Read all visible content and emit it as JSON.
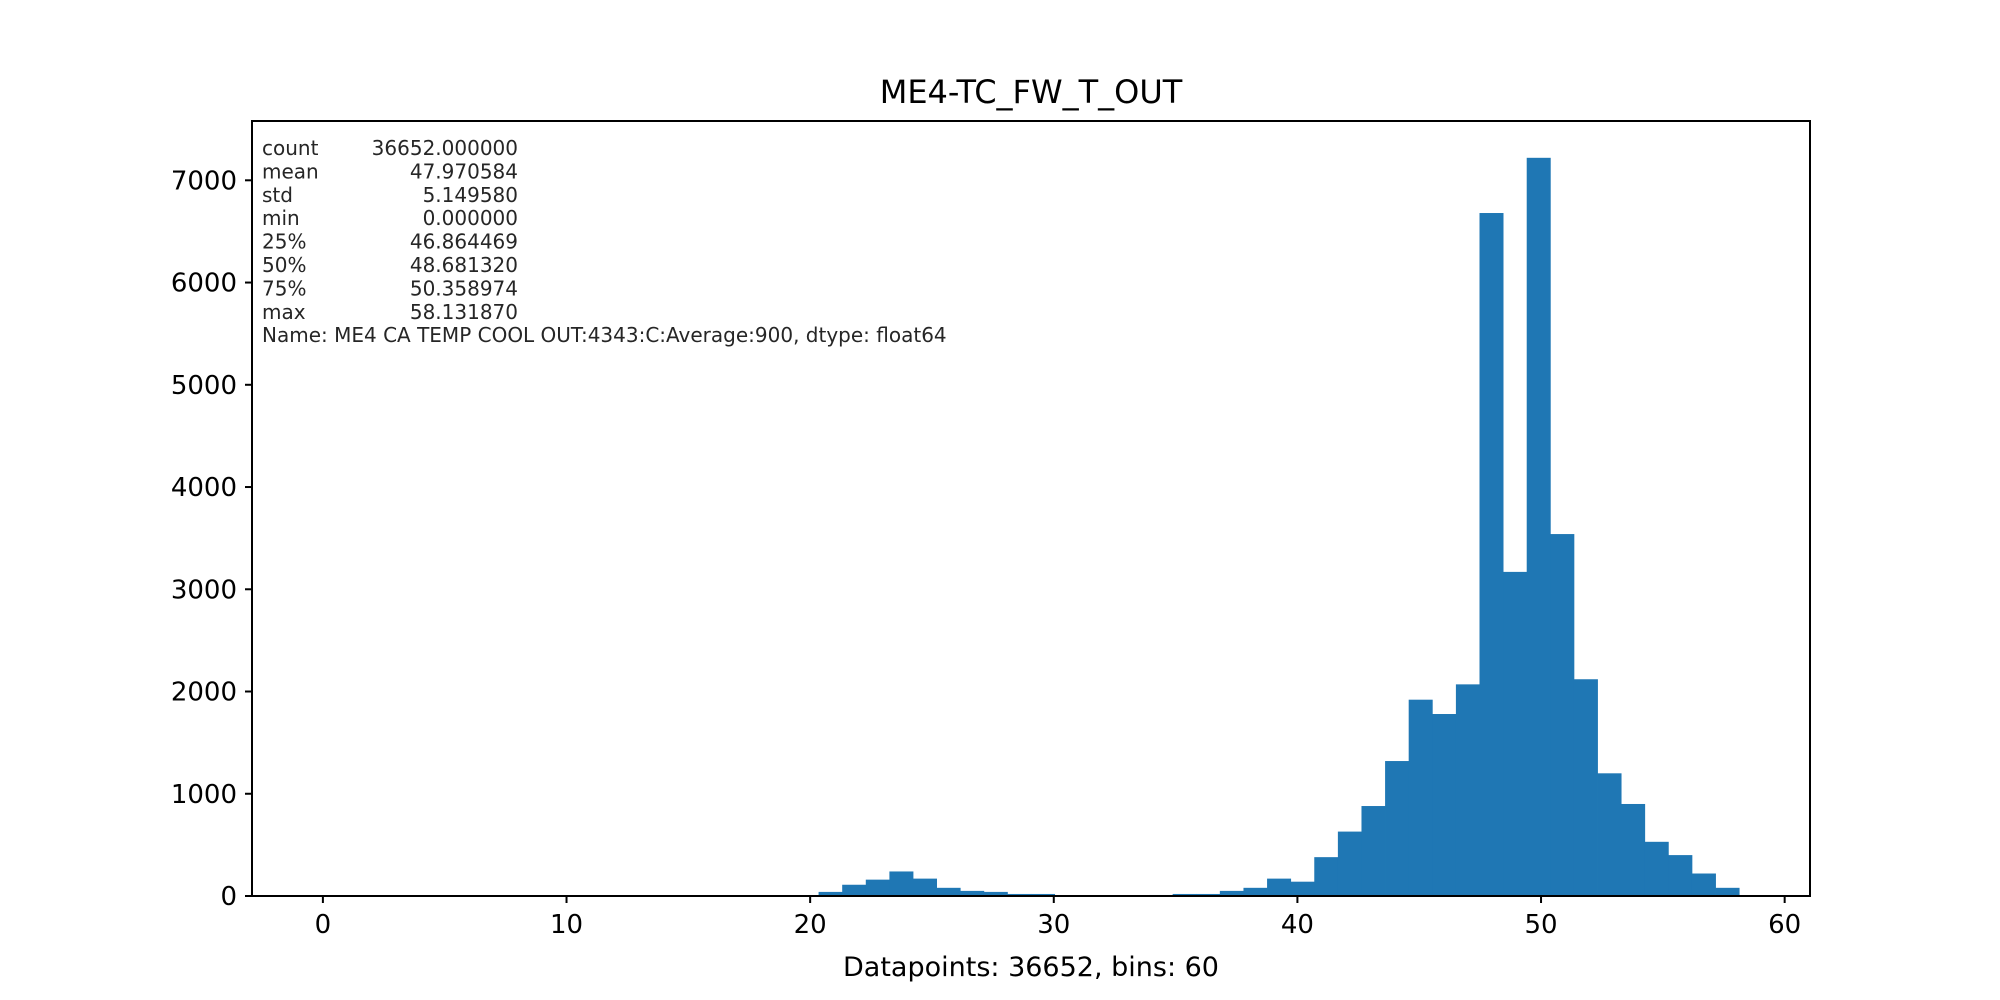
{
  "chart_data": {
    "type": "bar",
    "title": "ME4-TC_FW_T_OUT",
    "xlabel": "Datapoints: 36652, bins: 60",
    "ylabel": "",
    "xlim": [
      -2.91,
      61.04
    ],
    "ylim": [
      0,
      7580
    ],
    "x_ticks": [
      0,
      10,
      20,
      30,
      40,
      50,
      60
    ],
    "y_ticks": [
      0,
      1000,
      2000,
      3000,
      4000,
      5000,
      6000,
      7000
    ],
    "grid": false,
    "legend": "none",
    "bar_color": "#1f77b4",
    "bin_start": 0,
    "bin_width": 0.968865,
    "bins": 60,
    "counts": [
      0,
      0,
      0,
      0,
      0,
      0,
      0,
      0,
      0,
      0,
      0,
      0,
      0,
      0,
      0,
      0,
      0,
      0,
      0,
      0,
      0,
      40,
      110,
      160,
      240,
      170,
      80,
      50,
      40,
      20,
      20,
      0,
      0,
      0,
      0,
      10,
      20,
      20,
      50,
      80,
      170,
      140,
      380,
      630,
      880,
      1320,
      1920,
      1780,
      2070,
      6680,
      3170,
      7220,
      3540,
      2120,
      1200,
      900,
      530,
      400,
      220,
      80
    ],
    "stats_lines": [
      {
        "key": "count",
        "value": "36652.000000"
      },
      {
        "key": "mean",
        "value": "47.970584"
      },
      {
        "key": "std",
        "value": "5.149580"
      },
      {
        "key": "min",
        "value": "0.000000"
      },
      {
        "key": "25%",
        "value": "46.864469"
      },
      {
        "key": "50%",
        "value": "48.681320"
      },
      {
        "key": "75%",
        "value": "50.358974"
      },
      {
        "key": "max",
        "value": "58.131870"
      }
    ],
    "stats_footer": "Name: ME4 CA TEMP COOL OUT:4343:C:Average:900, dtype: float64"
  }
}
